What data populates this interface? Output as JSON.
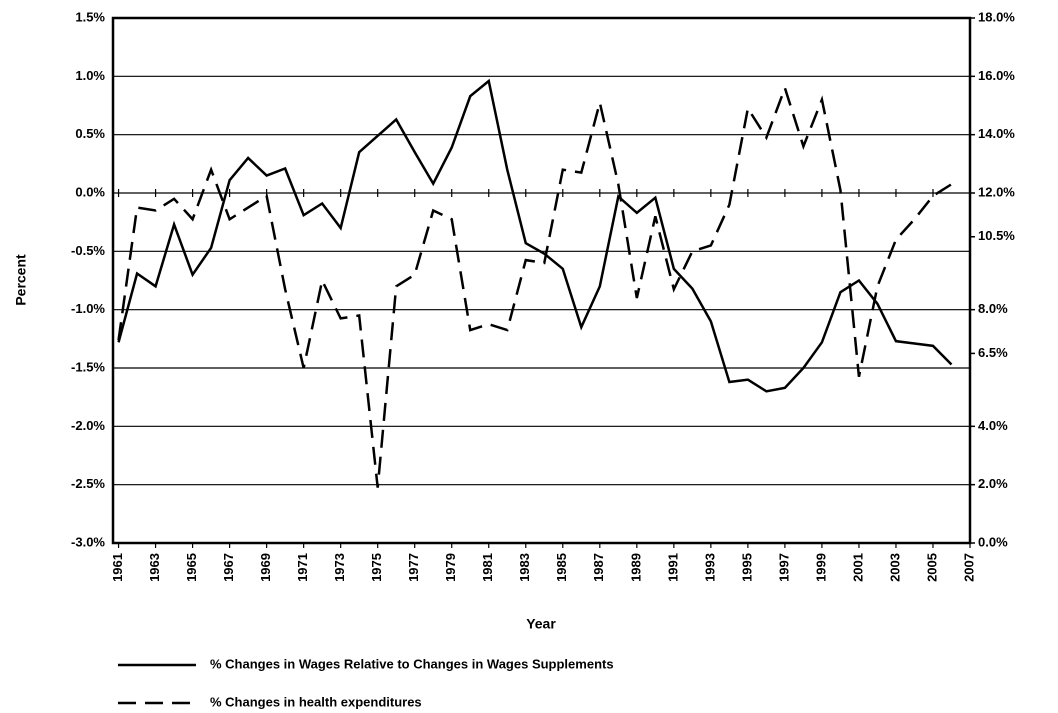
{
  "chart_data": {
    "type": "line",
    "xlabel": "Year",
    "ylabel": "Percent",
    "x": [
      1961,
      1962,
      1963,
      1964,
      1965,
      1966,
      1967,
      1968,
      1969,
      1970,
      1971,
      1972,
      1973,
      1974,
      1975,
      1976,
      1977,
      1978,
      1979,
      1980,
      1981,
      1982,
      1983,
      1984,
      1985,
      1986,
      1987,
      1988,
      1989,
      1990,
      1991,
      1992,
      1993,
      1994,
      1995,
      1996,
      1997,
      1998,
      1999,
      2000,
      2001,
      2002,
      2003,
      2004,
      2005,
      2006
    ],
    "series": [
      {
        "name": "% Changes in Wages Relative to Changes in Wages Supplements",
        "color": "#000000",
        "dash": "solid",
        "values": [
          -1.28,
          -0.69,
          -0.8,
          -0.27,
          -0.7,
          -0.47,
          0.11,
          0.3,
          0.15,
          0.21,
          -0.19,
          -0.09,
          -0.3,
          0.35,
          0.49,
          0.63,
          0.35,
          0.08,
          0.39,
          0.83,
          0.96,
          0.2,
          -0.43,
          -0.52,
          -0.65,
          -1.15,
          -0.8,
          -0.03,
          -0.17,
          -0.04,
          -0.65,
          -0.82,
          -1.1,
          -1.62,
          -1.6,
          -1.7,
          -1.67,
          -1.5,
          -1.28,
          -0.85,
          -0.75,
          -0.95,
          -1.27,
          -1.29,
          -1.31,
          -1.47
        ]
      },
      {
        "name": "% Changes in health expenditures",
        "color": "#000000",
        "dash": "dashed",
        "axis": "y2",
        "values": [
          6.96,
          11.5,
          11.4,
          11.8,
          11.1,
          12.8,
          11.1,
          11.5,
          11.9,
          8.7,
          6.0,
          9.0,
          7.7,
          7.8,
          1.9,
          8.8,
          9.2,
          11.4,
          11.1,
          7.3,
          7.5,
          7.3,
          9.7,
          9.6,
          12.8,
          12.7,
          15.1,
          12.3,
          8.4,
          11.2,
          8.7,
          10.0,
          10.2,
          11.6,
          14.9,
          13.9,
          15.6,
          13.6,
          15.2,
          12.1,
          5.7,
          8.8,
          10.4,
          11.1,
          11.9,
          12.3
        ]
      }
    ],
    "xlim": [
      1960.7,
      2007
    ],
    "xticks": [
      1961,
      1963,
      1965,
      1967,
      1969,
      1971,
      1973,
      1975,
      1977,
      1979,
      1981,
      1983,
      1985,
      1987,
      1989,
      1991,
      1993,
      1995,
      1997,
      1999,
      2001,
      2003,
      2005,
      2007
    ],
    "ylim": [
      -3,
      1.5
    ],
    "yticks": [
      {
        "value": -3,
        "label": "-3.0%"
      },
      {
        "value": -2.5,
        "label": "-2.5%"
      },
      {
        "value": -2,
        "label": "-2.0%"
      },
      {
        "value": -1.5,
        "label": "-1.5%"
      },
      {
        "value": -1,
        "label": "-1.0%"
      },
      {
        "value": -0.5,
        "label": "-0.5%"
      },
      {
        "value": 0,
        "label": "0.0%"
      },
      {
        "value": 0.5,
        "label": "0.5%"
      },
      {
        "value": 1,
        "label": "1.0%"
      },
      {
        "value": 1.5,
        "label": "1.5%"
      }
    ],
    "y2lim": [
      0,
      18
    ],
    "y2ticks": [
      {
        "value": 0,
        "label": "0.0%"
      },
      {
        "value": 2,
        "label": "2.0%"
      },
      {
        "value": 4,
        "label": "4.0%"
      },
      {
        "value": 6.5,
        "label": "6.5%"
      },
      {
        "value": 8,
        "label": "8.0%"
      },
      {
        "value": 10.5,
        "label": "10.5%"
      },
      {
        "value": 12,
        "label": "12.0%"
      },
      {
        "value": 14,
        "label": "14.0%"
      },
      {
        "value": 16,
        "label": "16.0%"
      },
      {
        "value": 18,
        "label": "18.0%"
      }
    ],
    "grid": true
  }
}
